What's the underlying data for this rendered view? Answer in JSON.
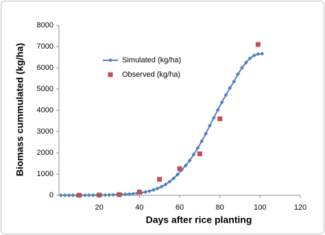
{
  "chart_data": {
    "type": "line",
    "xlabel": "Days after rice planting",
    "ylabel": "Biomass cummulated (kg/ha)",
    "xlim": [
      0,
      120
    ],
    "xticks": [
      20,
      40,
      60,
      80,
      100,
      120
    ],
    "ylim": [
      0,
      8000
    ],
    "yticks": [
      0,
      1000,
      2000,
      3000,
      4000,
      5000,
      6000,
      7000,
      8000
    ],
    "grid": false,
    "legend": "upper left",
    "series": [
      {
        "name": "Simulated (kg/ha)",
        "color": "#4f81bd",
        "marker": "diamond",
        "line": true,
        "x": [
          1,
          3,
          5,
          7,
          9,
          11,
          13,
          15,
          17,
          19,
          21,
          23,
          25,
          27,
          29,
          31,
          33,
          35,
          37,
          39,
          41,
          43,
          45,
          47,
          49,
          51,
          53,
          55,
          57,
          59,
          61,
          63,
          65,
          67,
          69,
          71,
          73,
          75,
          77,
          79,
          81,
          83,
          85,
          87,
          89,
          91,
          93,
          95,
          97,
          99,
          101
        ],
        "values": [
          1,
          1,
          1,
          2,
          2,
          3,
          4,
          5,
          6,
          8,
          10,
          13,
          17,
          21,
          28,
          35,
          45,
          58,
          74,
          95,
          122,
          155,
          198,
          252,
          320,
          405,
          510,
          640,
          795,
          980,
          1190,
          1400,
          1640,
          1920,
          2220,
          2550,
          2900,
          3280,
          3650,
          4020,
          4380,
          4720,
          5050,
          5350,
          5700,
          6000,
          6250,
          6450,
          6580,
          6650,
          6660
        ]
      },
      {
        "name": "Observed (kg/ha)",
        "color": "#c0504d",
        "marker": "square",
        "line": false,
        "x": [
          10,
          20,
          30,
          40,
          50,
          60,
          70,
          80,
          99
        ],
        "values": [
          0,
          10,
          30,
          150,
          750,
          1250,
          1950,
          3600,
          7100
        ]
      }
    ]
  }
}
